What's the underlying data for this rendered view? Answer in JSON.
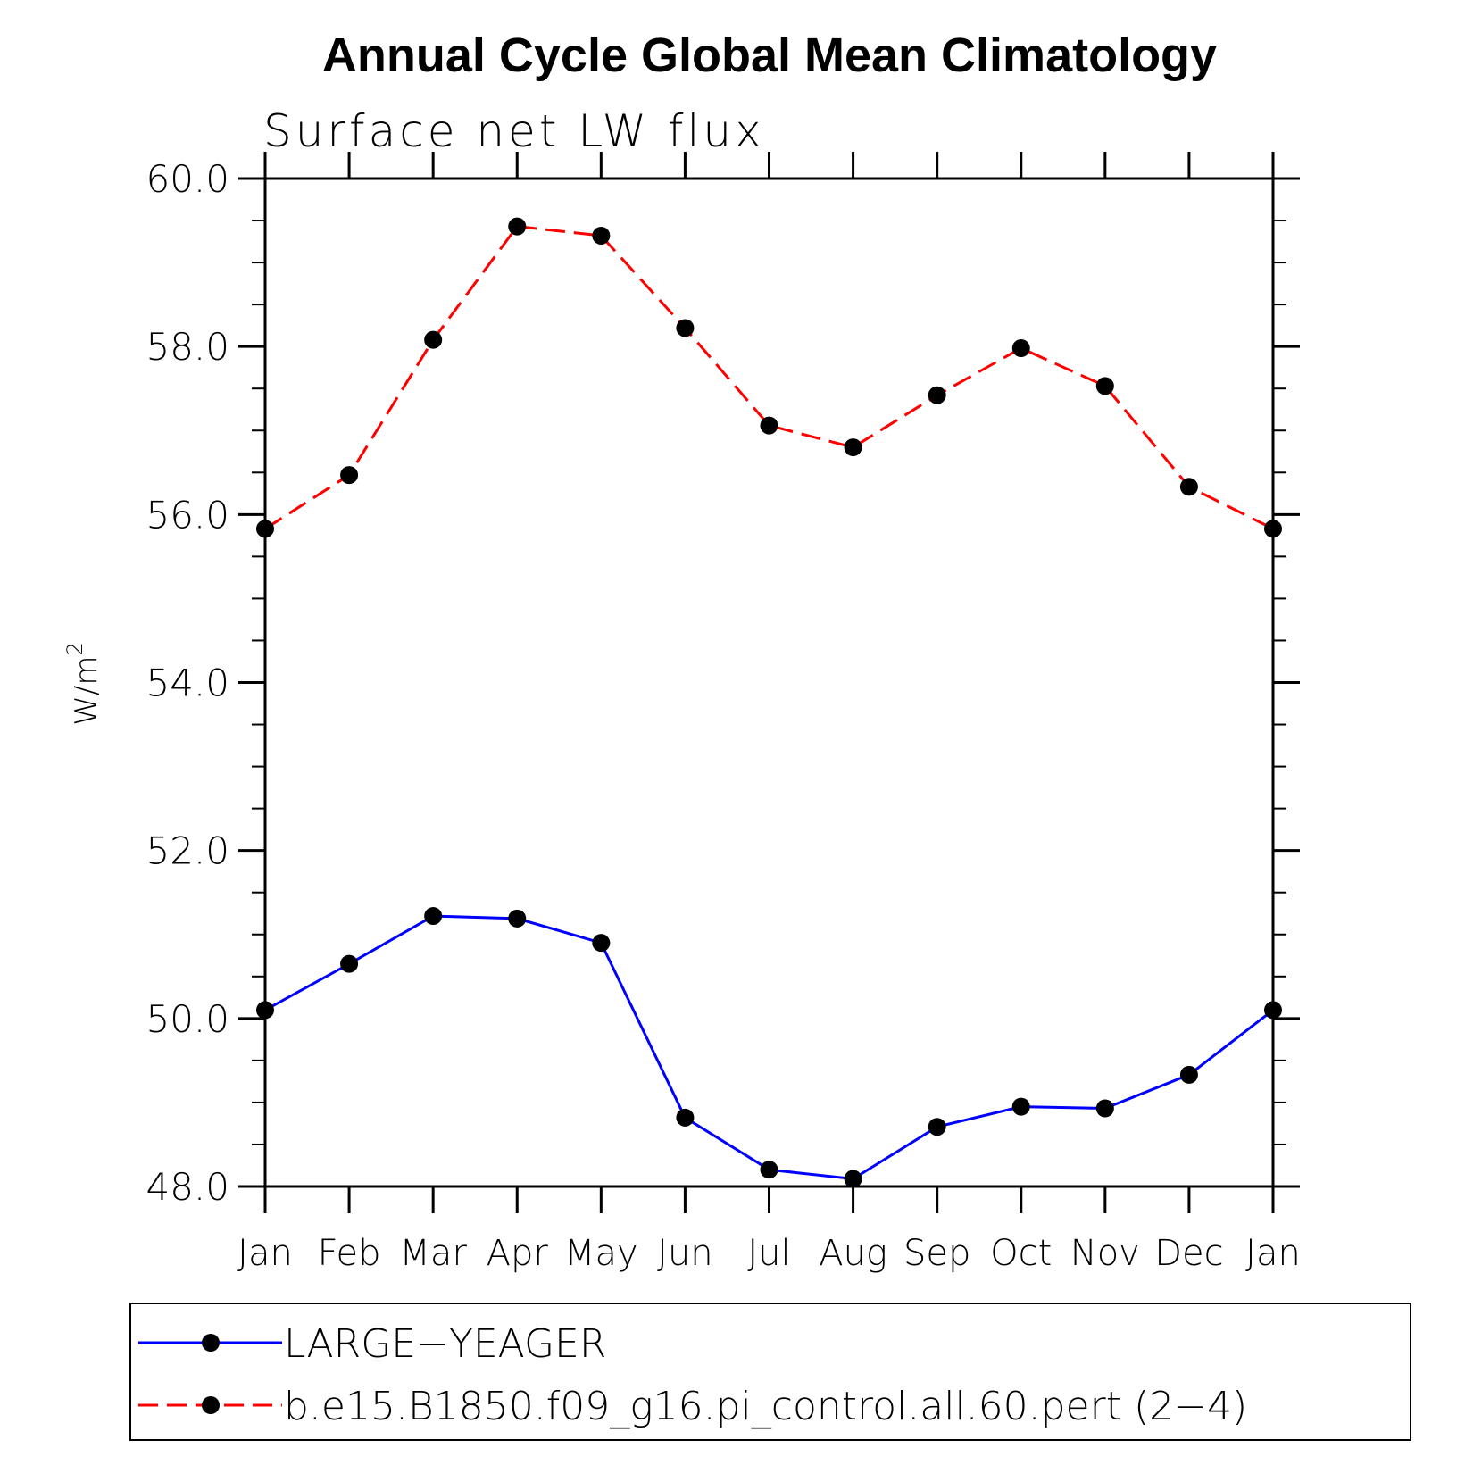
{
  "chart_data": {
    "type": "line",
    "title": "Annual Cycle Global Mean Climatology",
    "subtitle": "Surface net LW flux",
    "ylabel": "W/m",
    "ylabel_superscript": "2",
    "xlabel": "",
    "categories": [
      "Jan",
      "Feb",
      "Mar",
      "Apr",
      "May",
      "Jun",
      "Jul",
      "Aug",
      "Sep",
      "Oct",
      "Nov",
      "Dec",
      "Jan"
    ],
    "ylim": [
      48.0,
      60.0
    ],
    "yticks": [
      "48.0",
      "50.0",
      "52.0",
      "54.0",
      "56.0",
      "58.0",
      "60.0"
    ],
    "ytick_values": [
      48,
      50,
      52,
      54,
      56,
      58,
      60
    ],
    "yminor_step": 0.5,
    "grid": false,
    "legend_position": "bottom",
    "series": [
      {
        "name": "LARGE−YEAGER",
        "color": "#0000ff",
        "dashed": false,
        "values": [
          50.1,
          50.65,
          51.22,
          51.19,
          50.9,
          48.82,
          48.2,
          48.09,
          48.71,
          48.95,
          48.93,
          49.33,
          50.1
        ]
      },
      {
        "name": "b.e15.B1850.f09_g16.pi_control.all.60.pert (2−4)",
        "color": "#ff0000",
        "dashed": true,
        "values": [
          55.83,
          56.47,
          58.08,
          59.43,
          59.32,
          58.22,
          57.06,
          56.8,
          57.42,
          57.98,
          57.53,
          56.33,
          55.83
        ]
      }
    ]
  }
}
